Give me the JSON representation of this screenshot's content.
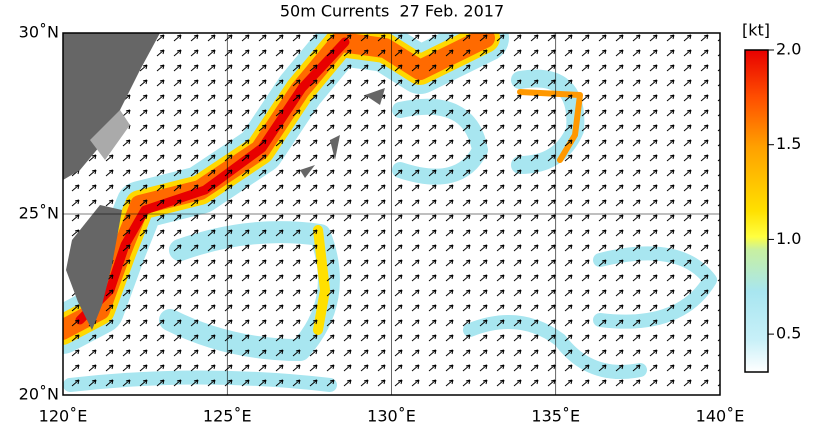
{
  "map": {
    "title": "50m Currents  27 Feb. 2017",
    "xlim": [
      120,
      140
    ],
    "ylim": [
      20,
      30
    ],
    "xticks": [
      {
        "value": 120,
        "label": "120˚E"
      },
      {
        "value": 125,
        "label": "125˚E"
      },
      {
        "value": 130,
        "label": "130˚E"
      },
      {
        "value": 135,
        "label": "135˚E"
      },
      {
        "value": 140,
        "label": "140˚E"
      }
    ],
    "yticks": [
      {
        "value": 20,
        "label": "20˚N"
      },
      {
        "value": 25,
        "label": "25˚N"
      },
      {
        "value": 30,
        "label": "30˚N"
      }
    ],
    "grid": true,
    "colorbar": {
      "label": "[kt]",
      "lim": [
        0.3,
        2.0
      ],
      "ticks": [
        0.5,
        {
          "value": 1.0,
          "label": "1.0"
        },
        1.5,
        {
          "value": 2.0,
          "label": "2.0"
        }
      ]
    }
  }
}
